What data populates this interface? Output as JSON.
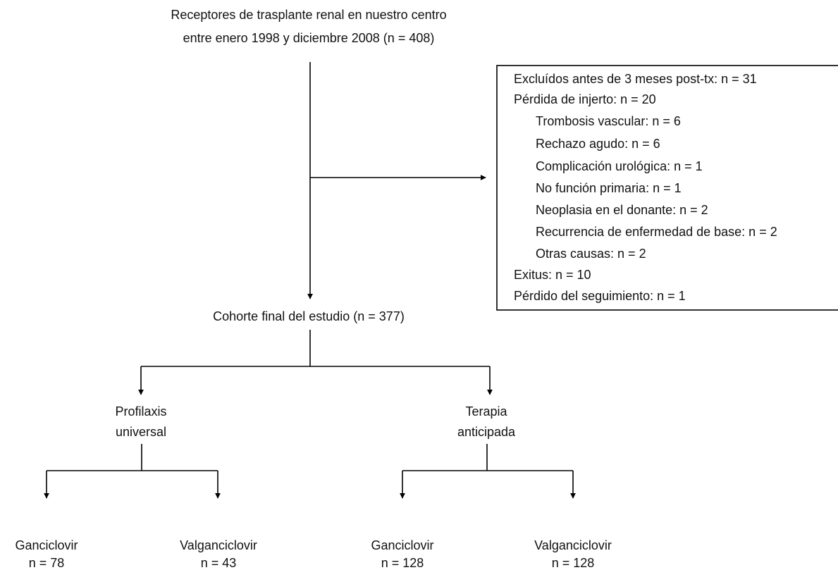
{
  "top": {
    "lines": [
      "Receptores de trasplante renal en nuestro centro",
      "entre enero 1998 y diciembre 2008 (n = 408)"
    ]
  },
  "exclusions": {
    "lines": [
      "Excluídos antes de 3 meses post-tx: n = 31",
      "Pérdida de injerto: n = 20",
      "Exitus: n = 10",
      "Pérdido del seguimiento: n = 1"
    ],
    "graft_loss_causes": [
      "Trombosis vascular: n = 6",
      "Rechazo agudo: n = 6",
      "Complicación urológica: n = 1",
      "No función primaria: n = 1",
      "Neoplasia en el donante: n = 2",
      "Recurrencia de enfermedad de base: n = 2",
      "Otras causas: n = 2"
    ]
  },
  "cohort": "Cohorte final del estudio (n = 377)",
  "groups": [
    {
      "lines": [
        "Profilaxis",
        "universal"
      ],
      "arms": [
        {
          "drug": "Ganciclovir",
          "n": "n = 78"
        },
        {
          "drug": "Valganciclovir",
          "n": "n = 43"
        }
      ]
    },
    {
      "lines": [
        "Terapia",
        "anticipada"
      ],
      "arms": [
        {
          "drug": "Ganciclovir",
          "n": "n = 128"
        },
        {
          "drug": "Valganciclovir",
          "n": "n = 128"
        }
      ]
    }
  ]
}
